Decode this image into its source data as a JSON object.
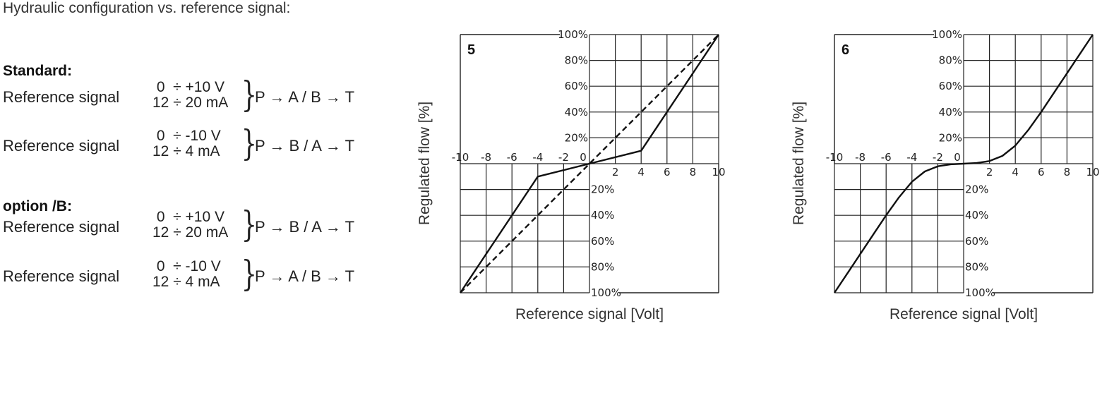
{
  "heading": "Hydraulic configuration vs. reference signal:",
  "standard": {
    "title": "Standard:",
    "rows": [
      {
        "label": "Reference signal",
        "line1": " 0  ÷ +10 V",
        "line2": "12 ÷ 20 mA",
        "conn": "P → A / B → T"
      },
      {
        "label": "Reference signal",
        "line1": " 0  ÷ -10 V",
        "line2": "12 ÷ 4 mA",
        "conn": "P → B / A → T"
      }
    ]
  },
  "optionB": {
    "title": "option /B:",
    "rows": [
      {
        "label": "Reference signal",
        "line1": " 0  ÷ +10 V",
        "line2": "12 ÷ 20 mA",
        "conn": "P → B / A → T"
      },
      {
        "label": "Reference signal",
        "line1": " 0  ÷ -10 V",
        "line2": "12 ÷ 4 mA",
        "conn": "P → A / B → T"
      }
    ]
  },
  "chart_data": [
    {
      "type": "line",
      "panel_label": "5",
      "xlabel": "Reference signal [Volt]",
      "ylabel": "Regulated flow [%]",
      "xlim": [
        -10,
        10
      ],
      "ylim": [
        -100,
        100
      ],
      "x_ticks": [
        "-10",
        "-8",
        "-6",
        "-4",
        "-2",
        "0",
        "2",
        "4",
        "6",
        "8",
        "10"
      ],
      "y_ticks_pos": [
        "100%",
        "80%",
        "60%",
        "40%",
        "20%"
      ],
      "y_ticks_neg": [
        "20%",
        "40%",
        "60%",
        "80%",
        "100%"
      ],
      "grid": true,
      "series": [
        {
          "style": "solid",
          "x": [
            -10,
            -4,
            0,
            4,
            10
          ],
          "y": [
            -100,
            -10,
            0,
            10,
            100
          ]
        },
        {
          "style": "dashed",
          "x": [
            -10,
            10
          ],
          "y": [
            -100,
            100
          ]
        }
      ]
    },
    {
      "type": "line",
      "panel_label": "6",
      "xlabel": "Reference signal [Volt]",
      "ylabel": "Regulated flow [%]",
      "xlim": [
        -10,
        10
      ],
      "ylim": [
        -100,
        100
      ],
      "x_ticks": [
        "-10",
        "-8",
        "-6",
        "-4",
        "-2",
        "0",
        "2",
        "4",
        "6",
        "8",
        "10"
      ],
      "y_ticks_pos": [
        "100%",
        "80%",
        "60%",
        "40%",
        "20%"
      ],
      "y_ticks_neg": [
        "20%",
        "40%",
        "60%",
        "80%",
        "100%"
      ],
      "grid": true,
      "series": [
        {
          "style": "solid",
          "x": [
            -10,
            -9,
            -8,
            -7,
            -6,
            -5,
            -4,
            -3,
            -2,
            -1,
            0,
            1,
            2,
            3,
            4,
            5,
            6,
            7,
            8,
            9,
            10
          ],
          "y": [
            -100,
            -85,
            -70,
            -55,
            -40,
            -26,
            -14,
            -6,
            -2,
            -0.5,
            0,
            0.5,
            2,
            6,
            14,
            26,
            40,
            55,
            70,
            85,
            100
          ]
        }
      ]
    }
  ]
}
